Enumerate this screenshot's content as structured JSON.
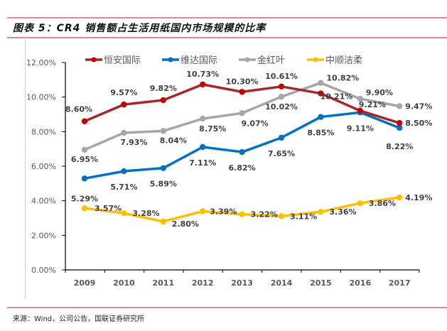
{
  "header": {
    "figure_title": "图表 5：CR4 销售额占生活用纸国内市场规模的比率"
  },
  "footer": {
    "source": "来源：Wind，公司公告，国联证券研究所"
  },
  "chart_data": {
    "type": "line",
    "title": "CR4 销售额占生活用纸国内市场规模的比率",
    "xlabel": "",
    "ylabel": "",
    "x": [
      "2009",
      "2010",
      "2011",
      "2012",
      "2013",
      "2014",
      "2015",
      "2016",
      "2017"
    ],
    "ylim": [
      0,
      12
    ],
    "yticks": [
      "0.00%",
      "2.00%",
      "4.00%",
      "6.00%",
      "8.00%",
      "10.00%",
      "12.00%"
    ],
    "ytick_values": [
      0,
      2,
      4,
      6,
      8,
      10,
      12
    ],
    "grid": false,
    "legend_position": "top",
    "series": [
      {
        "name": "恒安国际",
        "color": "#a5282a",
        "marker_color": "#c00000",
        "values": [
          8.6,
          9.57,
          9.82,
          10.73,
          10.3,
          10.61,
          10.21,
          9.21,
          8.5
        ],
        "labels": [
          "8.60%",
          "9.57%",
          "9.82%",
          "10.73%",
          "10.30%",
          "10.61%",
          "10.21%",
          "9.21%",
          "8.50%"
        ]
      },
      {
        "name": "维达国际",
        "color": "#0070c0",
        "marker_color": "#0070c0",
        "values": [
          5.29,
          5.71,
          5.89,
          7.11,
          6.82,
          7.65,
          8.85,
          9.11,
          8.22
        ],
        "labels": [
          "5.29%",
          "5.71%",
          "5.89%",
          "7.11%",
          "6.82%",
          "7.65%",
          "8.85%",
          "9.11%",
          "8.22%"
        ]
      },
      {
        "name": "金红叶",
        "color": "#a6a6a6",
        "marker_color": "#a6a6a6",
        "values": [
          6.95,
          7.93,
          8.04,
          8.75,
          9.07,
          10.02,
          10.82,
          9.9,
          9.47
        ],
        "labels": [
          "6.95%",
          "7.93%",
          "8.04%",
          "8.75%",
          "9.07%",
          "10.02%",
          "10.82%",
          "9.90%",
          "9.47%"
        ]
      },
      {
        "name": "中顺洁柔",
        "color": "#ffc000",
        "marker_color": "#ffc000",
        "values": [
          3.57,
          3.28,
          2.8,
          3.39,
          3.22,
          3.11,
          3.36,
          3.86,
          4.19
        ],
        "labels": [
          "3.57%",
          "3.28%",
          "2.80%",
          "3.39%",
          "3.22%",
          "3.11%",
          "3.36%",
          "3.86%",
          "4.19%"
        ]
      }
    ]
  }
}
